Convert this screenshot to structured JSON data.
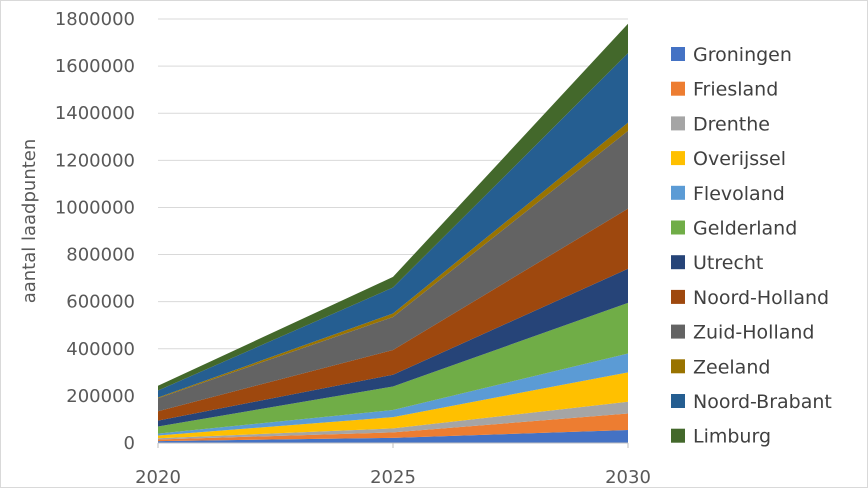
{
  "chart_data": {
    "type": "area",
    "stacked": true,
    "title": "",
    "xlabel": "",
    "ylabel": "aantal laadpunten",
    "x": [
      "2020",
      "2025",
      "2030"
    ],
    "ylim": [
      0,
      1800000
    ],
    "y_ticks": [
      "0",
      "200000",
      "400000",
      "600000",
      "800000",
      "1000000",
      "1200000",
      "1400000",
      "1600000",
      "1800000"
    ],
    "grid": true,
    "legend_position": "right",
    "series": [
      {
        "name": "Groningen",
        "color": "#4472c4",
        "values": [
          8000,
          22000,
          55000
        ]
      },
      {
        "name": "Friesland",
        "color": "#ed7d31",
        "values": [
          7000,
          23000,
          70000
        ]
      },
      {
        "name": "Drenthe",
        "color": "#a5a5a5",
        "values": [
          5000,
          17000,
          50000
        ]
      },
      {
        "name": "Overijssel",
        "color": "#ffc000",
        "values": [
          12000,
          48000,
          125000
        ]
      },
      {
        "name": "Flevoland",
        "color": "#5b9bd5",
        "values": [
          8000,
          30000,
          80000
        ]
      },
      {
        "name": "Gelderland",
        "color": "#70ad47",
        "values": [
          30000,
          100000,
          215000
        ]
      },
      {
        "name": "Utrecht",
        "color": "#264478",
        "values": [
          25000,
          50000,
          145000
        ]
      },
      {
        "name": "Noord-Holland",
        "color": "#9e480e",
        "values": [
          40000,
          105000,
          255000
        ]
      },
      {
        "name": "Zuid-Holland",
        "color": "#636363",
        "values": [
          55000,
          140000,
          330000
        ]
      },
      {
        "name": "Zeeland",
        "color": "#997300",
        "values": [
          3000,
          15000,
          35000
        ]
      },
      {
        "name": "Noord-Brabant",
        "color": "#255e91",
        "values": [
          30000,
          110000,
          295000
        ]
      },
      {
        "name": "Limburg",
        "color": "#43682b",
        "values": [
          20000,
          45000,
          125000
        ]
      }
    ]
  }
}
